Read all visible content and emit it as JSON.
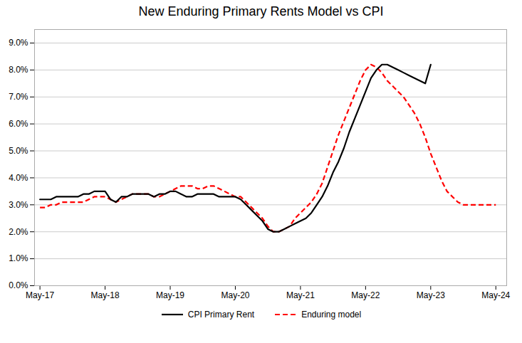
{
  "chart_data": {
    "type": "line",
    "title": "New Enduring Primary Rents Model vs CPI",
    "x": [
      0,
      1,
      2,
      3,
      4,
      5,
      6,
      7,
      8,
      9,
      10,
      11,
      12,
      13,
      14,
      15,
      16,
      17,
      18,
      19,
      20,
      21,
      22,
      23,
      24,
      25,
      26,
      27,
      28,
      29,
      30,
      31,
      32,
      33,
      34,
      35,
      36,
      37,
      38,
      39,
      40,
      41,
      42,
      43,
      44,
      45,
      46,
      47,
      48,
      49,
      50,
      51,
      52,
      53,
      54,
      55,
      56,
      57,
      58,
      59,
      60,
      61,
      62,
      63,
      64,
      65,
      66,
      67,
      68,
      69,
      70,
      71,
      72,
      73,
      74,
      75,
      76,
      77,
      78,
      79,
      80,
      81,
      82,
      83,
      84
    ],
    "series": [
      {
        "name": "CPI Primary Rent",
        "color": "#000000",
        "line_style": "solid",
        "values": [
          0.032,
          0.032,
          0.032,
          0.033,
          0.033,
          0.033,
          0.033,
          0.033,
          0.034,
          0.034,
          0.035,
          0.035,
          0.035,
          0.032,
          0.031,
          0.033,
          0.033,
          0.034,
          0.034,
          0.034,
          0.034,
          0.033,
          0.034,
          0.034,
          0.035,
          0.035,
          0.034,
          0.033,
          0.033,
          0.034,
          0.034,
          0.034,
          0.034,
          0.033,
          0.033,
          0.033,
          0.033,
          0.032,
          0.03,
          0.028,
          0.026,
          0.024,
          0.021,
          0.02,
          0.02,
          0.021,
          0.022,
          0.023,
          0.024,
          0.025,
          0.027,
          0.03,
          0.033,
          0.037,
          0.042,
          0.046,
          0.051,
          0.057,
          0.062,
          0.067,
          0.072,
          0.077,
          0.08,
          0.082,
          0.082,
          0.081,
          0.08,
          0.079,
          0.078,
          0.077,
          0.076,
          0.075,
          0.082,
          null,
          null,
          null,
          null,
          null,
          null,
          null,
          null,
          null,
          null,
          null,
          null
        ]
      },
      {
        "name": "Enduring model",
        "color": "#ff0000",
        "line_style": "dashed",
        "values": [
          0.029,
          0.029,
          0.03,
          0.03,
          0.031,
          0.031,
          0.031,
          0.031,
          0.031,
          0.032,
          0.033,
          0.033,
          0.033,
          0.032,
          0.031,
          0.032,
          0.033,
          0.034,
          0.034,
          0.034,
          0.034,
          0.033,
          0.033,
          0.034,
          0.035,
          0.036,
          0.037,
          0.037,
          0.037,
          0.036,
          0.036,
          0.037,
          0.037,
          0.036,
          0.035,
          0.034,
          0.033,
          0.033,
          0.031,
          0.029,
          0.027,
          0.025,
          0.022,
          0.02,
          0.02,
          0.021,
          0.022,
          0.025,
          0.027,
          0.029,
          0.031,
          0.034,
          0.038,
          0.044,
          0.05,
          0.056,
          0.061,
          0.066,
          0.071,
          0.076,
          0.08,
          0.082,
          0.081,
          0.079,
          0.076,
          0.074,
          0.072,
          0.07,
          0.067,
          0.064,
          0.06,
          0.055,
          0.049,
          0.044,
          0.039,
          0.035,
          0.033,
          0.031,
          0.03,
          0.03,
          0.03,
          0.03,
          0.03,
          0.03,
          0.03
        ]
      }
    ],
    "xlim": [
      -1,
      86
    ],
    "xticks": [
      {
        "value": 0,
        "label": "May-17"
      },
      {
        "value": 12,
        "label": "May-18"
      },
      {
        "value": 24,
        "label": "May-19"
      },
      {
        "value": 36,
        "label": "May-20"
      },
      {
        "value": 48,
        "label": "May-21"
      },
      {
        "value": 60,
        "label": "May-22"
      },
      {
        "value": 72,
        "label": "May-23"
      },
      {
        "value": 84,
        "label": "May-24"
      }
    ],
    "ylim": [
      0.0,
      0.095
    ],
    "yticks": [
      {
        "value": 0.0,
        "label": "0.0%"
      },
      {
        "value": 0.01,
        "label": "1.0%"
      },
      {
        "value": 0.02,
        "label": "2.0%"
      },
      {
        "value": 0.03,
        "label": "3.0%"
      },
      {
        "value": 0.04,
        "label": "4.0%"
      },
      {
        "value": 0.05,
        "label": "5.0%"
      },
      {
        "value": 0.06,
        "label": "6.0%"
      },
      {
        "value": 0.07,
        "label": "7.0%"
      },
      {
        "value": 0.08,
        "label": "8.0%"
      },
      {
        "value": 0.09,
        "label": "9.0%"
      }
    ],
    "grid": "y",
    "legend": "bottom"
  }
}
